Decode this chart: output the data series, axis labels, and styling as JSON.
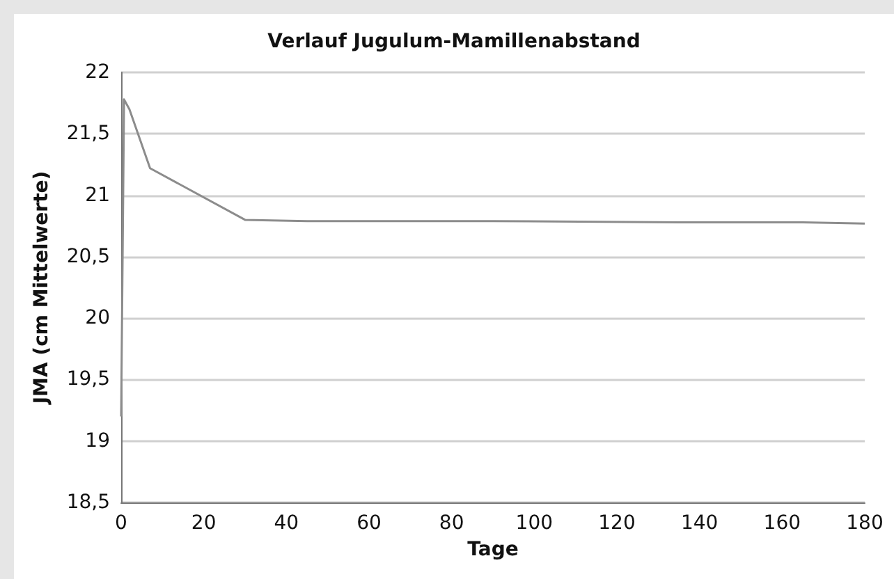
{
  "chart_data": {
    "type": "line",
    "title": "Verlauf Jugulum-Mamillenabstand",
    "xlabel": "Tage",
    "ylabel": "JMA (cm Mittelwerte)",
    "x": [
      0,
      0.7,
      2,
      7,
      30,
      45,
      90,
      135,
      165,
      180
    ],
    "series": [
      {
        "color": "#8c8c8c",
        "values": [
          19.2,
          21.78,
          21.7,
          21.22,
          20.8,
          20.79,
          20.79,
          20.78,
          20.78,
          20.77
        ]
      }
    ],
    "xlim": [
      0,
      180
    ],
    "xticks": [
      0,
      20,
      40,
      60,
      80,
      100,
      120,
      140,
      160,
      180
    ],
    "ylim": [
      18.5,
      22
    ],
    "yticks": [
      {
        "value": 18.5,
        "label": "18,5"
      },
      19,
      {
        "value": 19.5,
        "label": "19,5"
      },
      20,
      {
        "value": 20.5,
        "label": "20,5"
      },
      21,
      {
        "value": 21.5,
        "label": "21,5"
      },
      22
    ],
    "grid": "y",
    "marker": "none",
    "line_style": "solid"
  }
}
